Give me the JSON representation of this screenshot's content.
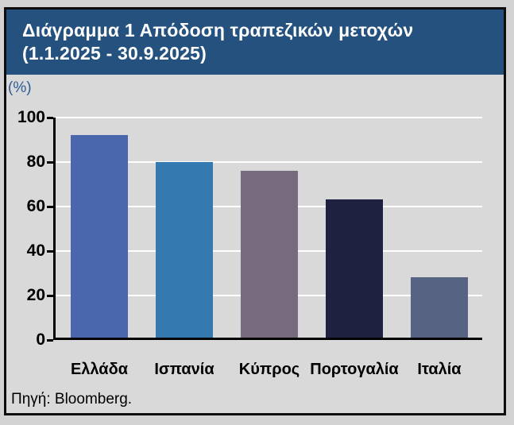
{
  "card": {
    "title_line1": "Διάγραμμα 1 Απόδοση τραπεζικών μετοχών",
    "title_line2": "(1.1.2025 - 30.9.2025)",
    "unit_label": "(%)",
    "source": "Πηγή: Bloomberg."
  },
  "colors": {
    "page_background": "#d2d2d2",
    "card_background": "#d9d9d9",
    "card_border": "#0d0d0d",
    "titlebar_background": "#24517e",
    "title_text": "#ffffff",
    "unit_text": "#2d5c94",
    "gridline": "#ffffff",
    "axis": "#000000",
    "bar_colors": [
      "#4a66ac",
      "#3579b1",
      "#786b7e",
      "#1e2140",
      "#566382"
    ]
  },
  "chart_data": {
    "type": "bar",
    "title": "Διάγραμμα 1 Απόδοση τραπεζικών μετοχών (1.1.2025 - 30.9.2025)",
    "categories": [
      "Ελλάδα",
      "Ισπανία",
      "Κύπρος",
      "Πορτογαλία",
      "Ιταλία"
    ],
    "values": [
      91,
      79,
      75,
      62,
      27
    ],
    "bar_colors": [
      "#4a66ac",
      "#3579b1",
      "#786b7e",
      "#1e2140",
      "#566382"
    ],
    "xlabel": "",
    "ylabel": "(%)",
    "ylim": [
      0,
      100
    ],
    "yticks": [
      0,
      20,
      40,
      60,
      80,
      100
    ],
    "grid": true,
    "legend": false,
    "source": "Πηγή: Bloomberg."
  }
}
